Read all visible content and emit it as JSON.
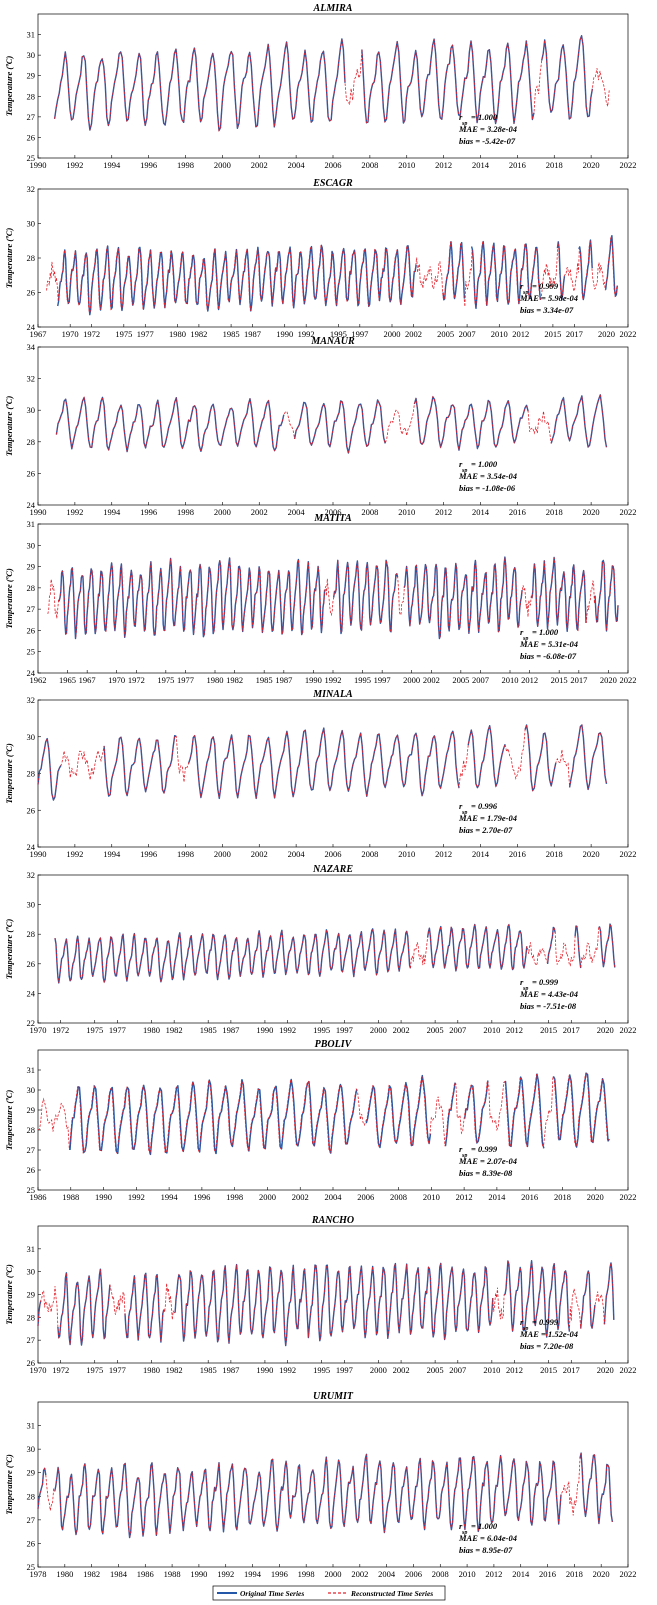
{
  "chart_data": [
    {
      "type": "line",
      "title": "ALMIRA",
      "ylabel": "Temperature (ºC)",
      "xlim": [
        1990,
        2022
      ],
      "ylim": [
        25,
        32
      ],
      "xticks": [
        1990,
        1992,
        1994,
        1996,
        1998,
        2000,
        2002,
        2004,
        2006,
        2008,
        2010,
        2012,
        2014,
        2016,
        2018,
        2020,
        2022
      ],
      "yticks": [
        25,
        26,
        27,
        28,
        29,
        30,
        31
      ],
      "original": {
        "start": 1990.9,
        "end": 2020.9,
        "mean": 28.5,
        "amp": 1.55,
        "trend": 0.02,
        "noise": 0.55,
        "seed": 11
      },
      "gaps": [
        [
          2006.7,
          2007.5
        ],
        [
          2016.9,
          2017.3
        ],
        [
          2020.1,
          2021.0
        ]
      ],
      "stats": {
        "r_label": "r",
        "r_sub": "sp",
        "r": "= 1.000",
        "mae": "MAE = 3.28e-04",
        "bias": "bias = -5.42e-07"
      },
      "stats_pos": "bottom-center"
    },
    {
      "type": "line",
      "title": "ESCAGR",
      "ylabel": "Temperature (ºC)",
      "xlim": [
        1967,
        2022
      ],
      "ylim": [
        24,
        32
      ],
      "xticks": [
        1967,
        1970,
        1972,
        1975,
        1977,
        1980,
        1982,
        1985,
        1987,
        1990,
        1992,
        1995,
        1997,
        2000,
        2002,
        2005,
        2007,
        2010,
        2012,
        2015,
        2017,
        2020,
        2022
      ],
      "yticks": [
        24,
        26,
        28,
        30,
        32
      ],
      "original": {
        "start": 1968.5,
        "end": 2021.0,
        "mean": 26.9,
        "amp": 1.35,
        "trend": 0.012,
        "noise": 0.6,
        "seed": 23
      },
      "gaps": [
        [
          1967.8,
          1968.8
        ],
        [
          2002.3,
          2004.7
        ],
        [
          2006.8,
          2007.4
        ],
        [
          2013.9,
          2015.4
        ],
        [
          2016.1,
          2017.4
        ],
        [
          2018.7,
          2019.9
        ]
      ],
      "stats": {
        "r_label": "r",
        "r_sub": "sp",
        "r": "= 0.999",
        "mae": "MAE = 5.98e-04",
        "bias": "bias = 3.34e-07"
      },
      "stats_pos": "bottom-right"
    },
    {
      "type": "line",
      "title": "MANAUR",
      "ylabel": "Temperature (ºC)",
      "xlim": [
        1990,
        2022
      ],
      "ylim": [
        24,
        34
      ],
      "xticks": [
        1990,
        1992,
        1994,
        1996,
        1998,
        2000,
        2002,
        2004,
        2006,
        2008,
        2010,
        2012,
        2014,
        2016,
        2018,
        2020,
        2022
      ],
      "yticks": [
        24,
        26,
        28,
        30,
        32,
        34
      ],
      "original": {
        "start": 1991.0,
        "end": 2020.9,
        "mean": 29.1,
        "amp": 1.25,
        "trend": 0.01,
        "noise": 0.5,
        "seed": 37
      },
      "gaps": [
        [
          2003.4,
          2003.9
        ],
        [
          2008.9,
          2010.4
        ],
        [
          2016.6,
          2017.8
        ]
      ],
      "stats": {
        "r_label": "r",
        "r_sub": "sp",
        "r": "= 1.000",
        "mae": "MAE = 3.54e-04",
        "bias": "bias = -1.08e-06"
      },
      "stats_pos": "bottom-center"
    },
    {
      "type": "line",
      "title": "MATITA",
      "ylabel": "Temperature (ºC)",
      "xlim": [
        1962,
        2022
      ],
      "ylim": [
        24,
        31
      ],
      "xticks": [
        1962,
        1965,
        1967,
        1970,
        1972,
        1975,
        1977,
        1980,
        1982,
        1985,
        1987,
        1990,
        1992,
        1995,
        1997,
        2000,
        2002,
        2005,
        2007,
        2010,
        2012,
        2015,
        2017,
        2020,
        2022
      ],
      "yticks": [
        24,
        25,
        26,
        27,
        28,
        29,
        30,
        31
      ],
      "original": {
        "start": 1963.4,
        "end": 2021.0,
        "mean": 27.5,
        "amp": 1.3,
        "trend": 0.005,
        "noise": 0.6,
        "seed": 41
      },
      "gaps": [
        [
          1963.0,
          1964.0
        ],
        [
          1991.2,
          1992.0
        ],
        [
          1998.6,
          1999.2
        ],
        [
          2011.3,
          2012.2
        ],
        [
          2017.8,
          2018.6
        ]
      ],
      "stats": {
        "r_label": "r",
        "r_sub": "sp",
        "r": "= 1.000",
        "mae": "MAE = 5.31e-04",
        "bias": "bias = -6.08e-07"
      },
      "stats_pos": "bottom-right"
    },
    {
      "type": "line",
      "title": "MINALA",
      "ylabel": "Temperature (ºC)",
      "xlim": [
        1990,
        2022
      ],
      "ylim": [
        24,
        32
      ],
      "xticks": [
        1990,
        1992,
        1994,
        1996,
        1998,
        2000,
        2002,
        2004,
        2006,
        2008,
        2010,
        2012,
        2014,
        2016,
        2018,
        2020,
        2022
      ],
      "yticks": [
        24,
        26,
        28,
        30,
        32
      ],
      "original": {
        "start": 1990.0,
        "end": 2020.9,
        "mean": 28.5,
        "amp": 1.4,
        "trend": 0.02,
        "noise": 0.45,
        "seed": 53
      },
      "gaps": [
        [
          1991.3,
          1993.5
        ],
        [
          1997.5,
          1998.1
        ],
        [
          2012.9,
          2013.3
        ],
        [
          2015.4,
          2016.4
        ],
        [
          2018.1,
          2018.8
        ]
      ],
      "stats": {
        "r_label": "r",
        "r_sub": "sp",
        "r": "= 0.996",
        "mae": "MAE = 1.79e-04",
        "bias": "bias = 2.70e-07"
      },
      "stats_pos": "bottom-center"
    },
    {
      "type": "line",
      "title": "NAZARE",
      "ylabel": "Temperature (ºC)",
      "xlim": [
        1970,
        2022
      ],
      "ylim": [
        22,
        32
      ],
      "xticks": [
        1970,
        1972,
        1975,
        1977,
        1980,
        1982,
        1985,
        1987,
        1990,
        1992,
        1995,
        1997,
        2000,
        2002,
        2005,
        2007,
        2010,
        2012,
        2015,
        2017,
        2020,
        2022
      ],
      "yticks": [
        22,
        24,
        26,
        28,
        30,
        32
      ],
      "original": {
        "start": 1971.5,
        "end": 2020.9,
        "mean": 26.6,
        "amp": 1.2,
        "trend": 0.02,
        "noise": 0.4,
        "seed": 67
      },
      "gaps": [
        [
          2002.9,
          2004.3
        ],
        [
          2013.1,
          2014.9
        ],
        [
          2015.6,
          2017.3
        ],
        [
          2017.9,
          2019.4
        ]
      ],
      "stats": {
        "r_label": "r",
        "r_sub": "sp",
        "r": "= 0.999",
        "mae": "MAE = 4.43e-04",
        "bias": "bias = -7.51e-08"
      },
      "stats_pos": "bottom-right"
    },
    {
      "type": "line",
      "title": "PBOLIV",
      "ylabel": "Temperature (ºC)",
      "xlim": [
        1986,
        2022
      ],
      "ylim": [
        25,
        32
      ],
      "xticks": [
        1986,
        1988,
        1990,
        1992,
        1994,
        1996,
        1998,
        2000,
        2002,
        2004,
        2006,
        2008,
        2010,
        2012,
        2014,
        2016,
        2018,
        2020,
        2022
      ],
      "yticks": [
        25,
        26,
        27,
        28,
        29,
        30,
        31
      ],
      "original": {
        "start": 1987.7,
        "end": 2020.9,
        "mean": 28.7,
        "amp": 1.4,
        "trend": 0.015,
        "noise": 0.45,
        "seed": 71
      },
      "gaps": [
        [
          1986.0,
          1987.9
        ],
        [
          2005.5,
          2006.0
        ],
        [
          2010.0,
          2010.8
        ],
        [
          2011.5,
          2012.0
        ],
        [
          2013.5,
          2014.4
        ],
        [
          2016.9,
          2017.4
        ]
      ],
      "stats": {
        "r_label": "r",
        "r_sub": "sp",
        "r": "= 0.999",
        "mae": "MAE = 2.07e-04",
        "bias": "bias = 8.39e-08"
      },
      "stats_pos": "bottom-center"
    },
    {
      "type": "line",
      "title": "RANCHO",
      "ylabel": "Temperature (ºC)",
      "xlim": [
        1970,
        2022
      ],
      "ylim": [
        26,
        32
      ],
      "xticks": [
        1970,
        1972,
        1975,
        1977,
        1980,
        1982,
        1985,
        1987,
        1990,
        1992,
        1995,
        1997,
        2000,
        2002,
        2005,
        2007,
        2010,
        2012,
        2015,
        2017,
        2020,
        2022
      ],
      "yticks": [
        26,
        27,
        28,
        29,
        30,
        31
      ],
      "original": {
        "start": 1970.0,
        "end": 2020.8,
        "mean": 28.6,
        "amp": 1.25,
        "trend": 0.01,
        "noise": 0.5,
        "seed": 83
      },
      "gaps": [
        [
          1970.3,
          1971.7
        ],
        [
          1976.4,
          1977.6
        ],
        [
          1981.1,
          1982.0
        ],
        [
          2010.1,
          2011.0
        ],
        [
          2016.9,
          2017.8
        ],
        [
          2019.1,
          2019.9
        ]
      ],
      "stats": {
        "r_label": "r",
        "r_sub": "sp",
        "r": "= 0.999",
        "mae": "MAE = 1.52e-04",
        "bias": "bias = 7.20e-08"
      },
      "stats_pos": "bottom-right"
    },
    {
      "type": "line",
      "title": "URUMIT",
      "ylabel": "Temperature (ºC)",
      "xlim": [
        1978,
        2022
      ],
      "ylim": [
        25,
        32
      ],
      "xticks": [
        1978,
        1980,
        1982,
        1984,
        1986,
        1988,
        1990,
        1992,
        1994,
        1996,
        1998,
        2000,
        2002,
        2004,
        2006,
        2008,
        2010,
        2012,
        2014,
        2016,
        2018,
        2020,
        2022
      ],
      "yticks": [
        25,
        26,
        27,
        28,
        29,
        30,
        31
      ],
      "original": {
        "start": 1978.0,
        "end": 2020.9,
        "mean": 28.0,
        "amp": 1.15,
        "trend": 0.01,
        "noise": 0.55,
        "seed": 97
      },
      "gaps": [
        [
          1978.6,
          1979.2
        ],
        [
          2017.0,
          2018.4
        ]
      ],
      "stats": {
        "r_label": "r",
        "r_sub": "sp",
        "r": "= 1.000",
        "mae": "MAE = 6.04e-04",
        "bias": "bias = 8.95e-07"
      },
      "stats_pos": "bottom-center"
    }
  ],
  "legend": {
    "position": "bottom-center",
    "items": [
      {
        "label": "Original Time Series",
        "color": "#2457a7",
        "style": "solid"
      },
      {
        "label": "Reconstructed Time Series",
        "color": "#e3202a",
        "style": "dashed"
      }
    ]
  },
  "colors": {
    "original": "#2457a7",
    "reconstructed": "#e3202a"
  }
}
